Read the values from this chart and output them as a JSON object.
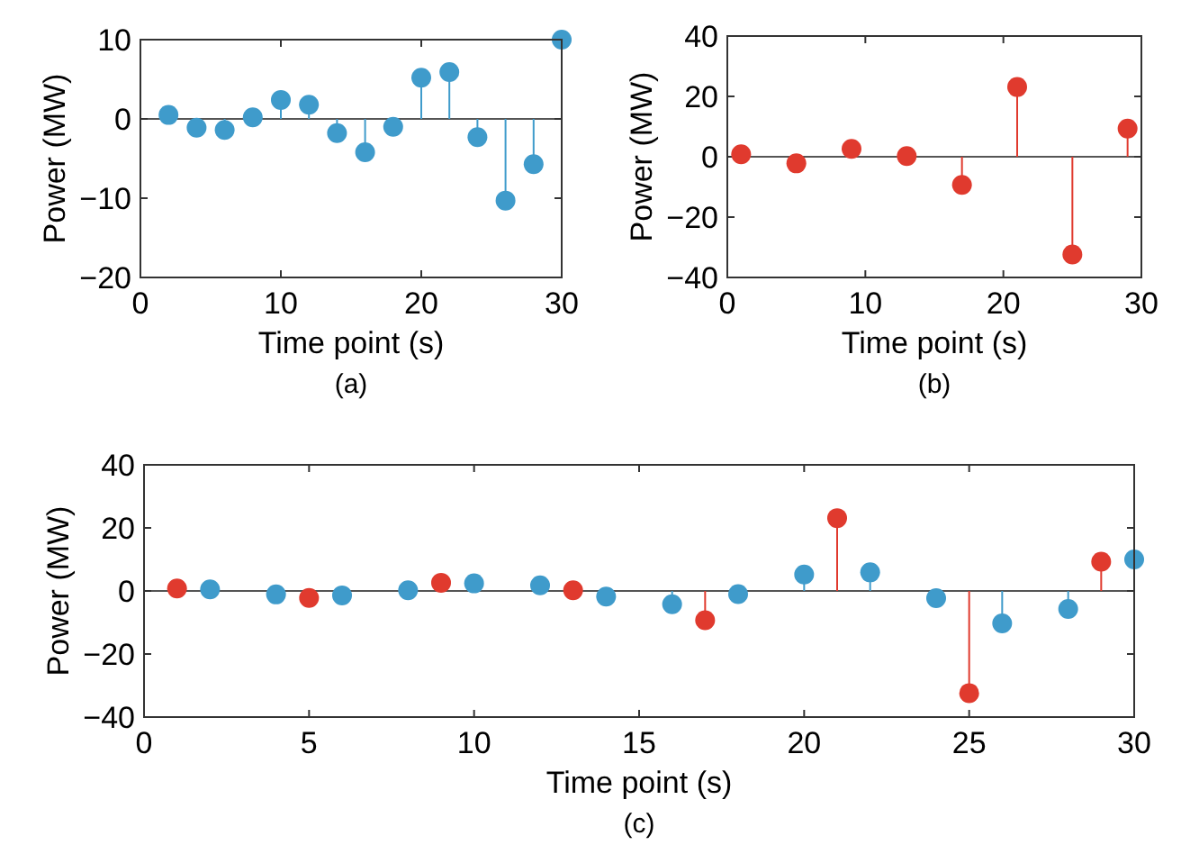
{
  "chart_data": [
    {
      "type": "lollipop",
      "xlabel": "Time point (s)",
      "ylabel": "Power (MW)",
      "annotations": [
        "(a)"
      ],
      "xlim": [
        0,
        30
      ],
      "xticks": [
        0,
        10,
        20,
        30
      ],
      "ylim": [
        -20,
        10
      ],
      "yticks": [
        -20,
        -10,
        0,
        10
      ],
      "marker": "circle",
      "series": [
        {
          "color": "#3f9bcb",
          "x": [
            2,
            4,
            6,
            8,
            10,
            12,
            14,
            16,
            18,
            20,
            22,
            24,
            26,
            28,
            30
          ],
          "values": [
            0.5,
            -1.1,
            -1.4,
            0.2,
            2.4,
            1.8,
            -1.8,
            -4.2,
            -1.0,
            5.2,
            5.9,
            -2.3,
            -10.3,
            -5.7,
            10.0
          ]
        }
      ]
    },
    {
      "type": "lollipop",
      "xlabel": "Time point (s)",
      "ylabel": "Power (MW)",
      "annotations": [
        "(b)"
      ],
      "xlim": [
        0,
        30
      ],
      "xticks": [
        0,
        10,
        20,
        30
      ],
      "ylim": [
        -40,
        40
      ],
      "yticks": [
        -40,
        -20,
        0,
        20,
        40
      ],
      "marker": "circle",
      "series": [
        {
          "color": "#e03a2e",
          "x": [
            1,
            5,
            9,
            13,
            17,
            21,
            25,
            29
          ],
          "values": [
            0.8,
            -2.2,
            2.6,
            0.2,
            -9.3,
            23.1,
            -32.4,
            9.3
          ]
        }
      ]
    },
    {
      "type": "lollipop",
      "xlabel": "Time point (s)",
      "ylabel": "Power (MW)",
      "annotations": [
        "(c)"
      ],
      "xlim": [
        0,
        30
      ],
      "xticks": [
        0,
        5,
        10,
        15,
        20,
        25,
        30
      ],
      "ylim": [
        -40,
        40
      ],
      "yticks": [
        -40,
        -20,
        0,
        20,
        40
      ],
      "marker": "circle",
      "series": [
        {
          "color": "#3f9bcb",
          "x": [
            2,
            4,
            6,
            8,
            10,
            12,
            14,
            16,
            18,
            20,
            22,
            24,
            26,
            28,
            30
          ],
          "values": [
            0.5,
            -1.1,
            -1.4,
            0.2,
            2.4,
            1.8,
            -1.8,
            -4.2,
            -1.0,
            5.2,
            5.9,
            -2.3,
            -10.3,
            -5.7,
            10.0
          ]
        },
        {
          "color": "#e03a2e",
          "x": [
            1,
            5,
            9,
            13,
            17,
            21,
            25,
            29
          ],
          "values": [
            0.8,
            -2.2,
            2.6,
            0.2,
            -9.3,
            23.1,
            -32.4,
            9.3
          ]
        }
      ]
    }
  ]
}
